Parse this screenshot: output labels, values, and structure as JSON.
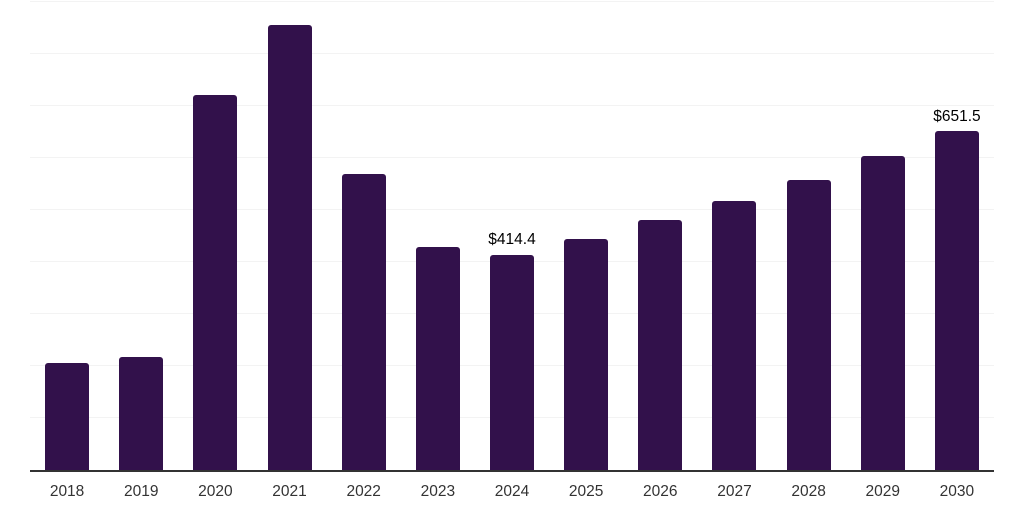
{
  "chart_data": {
    "type": "bar",
    "title": "",
    "xlabel": "",
    "ylabel": "",
    "categories": [
      "2018",
      "2019",
      "2020",
      "2021",
      "2022",
      "2023",
      "2024",
      "2025",
      "2026",
      "2027",
      "2028",
      "2029",
      "2030"
    ],
    "values": [
      206,
      218,
      721,
      855,
      569,
      428,
      414.4,
      444,
      481,
      517,
      558,
      604,
      651.5
    ],
    "data_labels": [
      {
        "category": "2024",
        "text": "$414.4"
      },
      {
        "category": "2030",
        "text": "$651.5"
      }
    ],
    "ylim": [
      0,
      900
    ],
    "gridline_step": 100,
    "grid": "horizontal",
    "legend": "none",
    "y_axis_labels_visible": false,
    "colors": {
      "bar": "#32114B",
      "gridline": "#f3f3f3",
      "axis_line": "#333333",
      "tick_label": "#333333",
      "data_label": "#000000",
      "background": "#ffffff"
    }
  }
}
